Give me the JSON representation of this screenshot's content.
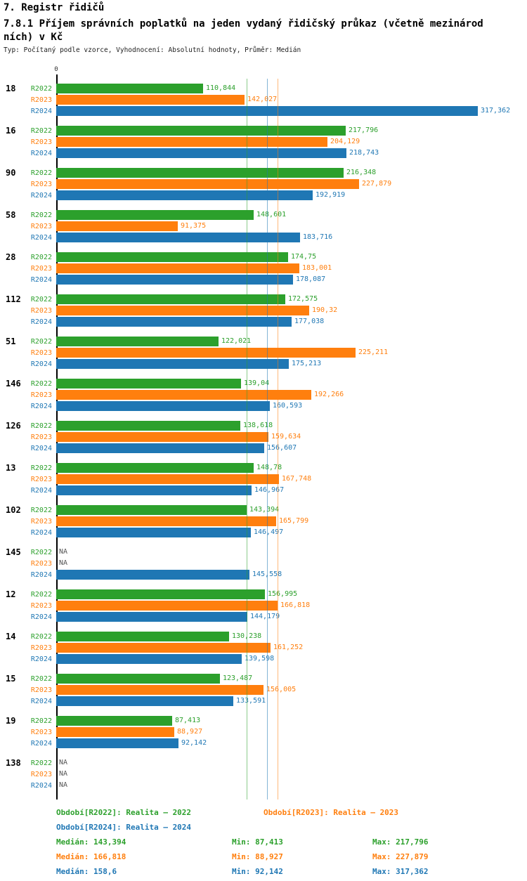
{
  "title": "7. Registr řidičů",
  "subtitle": "7.8.1 Příjem správních poplatků na jeden vydaný řidičský průkaz (včetně mezinárodních) v Kč",
  "meta": "Typ: Počítaný podle vzorce, Vyhodnocení: Absolutní hodnoty, Průměr: Medián",
  "axis": {
    "zero_label": "0"
  },
  "colors": {
    "r2022": "#2ca02c",
    "r2023": "#ff7f0e",
    "r2024": "#1f77b4",
    "na": "#555555",
    "axis": "#000000"
  },
  "chart_data": {
    "type": "bar",
    "orientation": "horizontal",
    "unit": "Kč",
    "average_type": "Medián",
    "x_start": 0,
    "categories": [
      "18",
      "16",
      "90",
      "58",
      "28",
      "112",
      "51",
      "146",
      "126",
      "13",
      "102",
      "145",
      "12",
      "14",
      "15",
      "19",
      "138"
    ],
    "series": [
      {
        "name": "R2022",
        "period_label": "Období[R2022]: Realita – 2022",
        "values": [
          110.844,
          217.796,
          216.348,
          148.601,
          174.75,
          172.575,
          122.021,
          139.04,
          138.618,
          148.78,
          143.394,
          null,
          156.995,
          130.238,
          123.487,
          87.413,
          null
        ],
        "labels": [
          "110,844",
          "217,796",
          "216,348",
          "148,601",
          "174,75",
          "172,575",
          "122,021",
          "139,04",
          "138,618",
          "148,78",
          "143,394",
          "NA",
          "156,995",
          "130,238",
          "123,487",
          "87,413",
          "NA"
        ],
        "median": 143.394,
        "median_label": "Medián: 143,394",
        "min_label": "Min: 87,413",
        "max_label": "Max: 217,796"
      },
      {
        "name": "R2023",
        "period_label": "Období[R2023]: Realita – 2023",
        "values": [
          142.027,
          204.129,
          227.879,
          91.375,
          183.001,
          190.32,
          225.211,
          192.266,
          159.634,
          167.748,
          165.799,
          null,
          166.818,
          161.252,
          156.005,
          88.927,
          null
        ],
        "labels": [
          "142,027",
          "204,129",
          "227,879",
          "91,375",
          "183,001",
          "190,32",
          "225,211",
          "192,266",
          "159,634",
          "167,748",
          "165,799",
          "NA",
          "166,818",
          "161,252",
          "156,005",
          "88,927",
          "NA"
        ],
        "median": 166.818,
        "median_label": "Medián: 166,818",
        "min_label": "Min: 88,927",
        "max_label": "Max: 227,879"
      },
      {
        "name": "R2024",
        "period_label": "Období[R2024]: Realita – 2024",
        "values": [
          317.362,
          218.743,
          192.919,
          183.716,
          178.087,
          177.038,
          175.213,
          160.593,
          156.607,
          146.967,
          146.497,
          145.558,
          144.179,
          139.598,
          133.591,
          92.142,
          null
        ],
        "labels": [
          "317,362",
          "218,743",
          "192,919",
          "183,716",
          "178,087",
          "177,038",
          "175,213",
          "160,593",
          "156,607",
          "146,967",
          "146,497",
          "145,558",
          "144,179",
          "139,598",
          "133,591",
          "92,142",
          "NA"
        ],
        "median": 158.6,
        "median_label": "Medián: 158,6",
        "min_label": "Min: 92,142",
        "max_label": "Max: 317,362"
      }
    ]
  }
}
